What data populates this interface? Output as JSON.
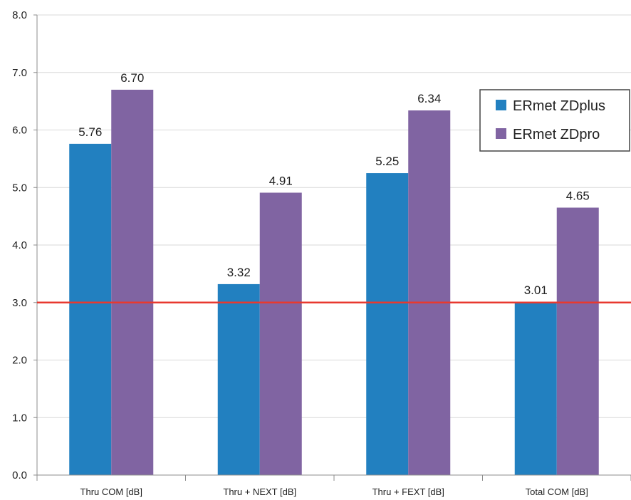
{
  "chart_data": {
    "type": "bar",
    "title": "",
    "xlabel": "",
    "ylabel": "",
    "categories": [
      "Thru COM [dB]",
      "Thru + NEXT [dB]",
      "Thru + FEXT [dB]",
      "Total COM [dB]"
    ],
    "series": [
      {
        "name": "ERmet ZDplus",
        "color": "#2280c0",
        "values": [
          5.76,
          3.32,
          5.25,
          3.01
        ],
        "labels": [
          "5.76",
          "3.32",
          "5.25",
          "3.01"
        ]
      },
      {
        "name": "ERmet ZDpro",
        "color": "#8064a2",
        "values": [
          6.7,
          4.91,
          6.34,
          4.65
        ],
        "labels": [
          "6.70",
          "4.91",
          "6.34",
          "4.65"
        ]
      }
    ],
    "ylim": [
      0,
      8
    ],
    "yticks": [
      "0.0",
      "1.0",
      "2.0",
      "3.0",
      "4.0",
      "5.0",
      "6.0",
      "7.0",
      "8.0"
    ],
    "reference_line": {
      "value": 3.0,
      "color": "#e8392f"
    },
    "grid": true,
    "legend": "top-right",
    "grid_color": "#d9d9d9",
    "axis_color": "#8c8c8c"
  }
}
